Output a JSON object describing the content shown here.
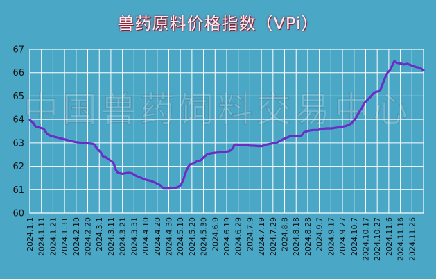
{
  "chart_data": {
    "type": "line",
    "title": "兽药原料价格指数（VPi）",
    "xlabel": "",
    "ylabel": "",
    "ylim": [
      60,
      67
    ],
    "y_ticks": [
      "60",
      "61",
      "62",
      "63",
      "64",
      "65",
      "66",
      "67"
    ],
    "x_ticks": [
      "2024.1.1",
      "2024.1.11",
      "2024.1.21",
      "2024.1.31",
      "2024.2.10",
      "2024.2.20",
      "2024.3.1",
      "2024.3.11",
      "2024.3.21",
      "2024.3.31",
      "2024.4.10",
      "2024.4.20",
      "2024.4.30",
      "2024.5.10",
      "2024.5.20",
      "2024.5.30",
      "2024.6.9",
      "2024.6.19",
      "2024.6.29",
      "2024.7.9",
      "2024.7.19",
      "2024.7.29",
      "2024.8.8",
      "2024.8.18",
      "2024.8.28",
      "2024.9.7",
      "2024.9.17",
      "2024.9.27",
      "2024.10.7",
      "2024.10.17",
      "2024.10.27",
      "2024.11.6",
      "2024.11.16",
      "2024.11.26"
    ],
    "x_range_days": [
      0,
      339
    ],
    "grid": true,
    "series": [
      {
        "name": "",
        "color": "#6a2ec4",
        "x_days": [
          0,
          3,
          5,
          8,
          12,
          15,
          18,
          22,
          26,
          30,
          34,
          38,
          42,
          46,
          50,
          55,
          58,
          61,
          63,
          65,
          68,
          72,
          74,
          76,
          78,
          80,
          82,
          85,
          88,
          92,
          96,
          100,
          104,
          108,
          112,
          115,
          118,
          120,
          122,
          124,
          126,
          128,
          130,
          132,
          134,
          136,
          138,
          140,
          142,
          144,
          147,
          150,
          153,
          156,
          160,
          164,
          168,
          172,
          175,
          176,
          178,
          180,
          183,
          186,
          190,
          194,
          197,
          200,
          204,
          208,
          212,
          216,
          220,
          224,
          228,
          232,
          234,
          236,
          240,
          244,
          248,
          252,
          256,
          260,
          264,
          268,
          272,
          276,
          280,
          284,
          286,
          288,
          290,
          292,
          294,
          296,
          298,
          300,
          302,
          304,
          306,
          308,
          310,
          312,
          314,
          316,
          318,
          320,
          322,
          325,
          328,
          332,
          336,
          339
        ],
        "values": [
          63.98,
          63.85,
          63.7,
          63.66,
          63.6,
          63.38,
          63.3,
          63.25,
          63.2,
          63.15,
          63.1,
          63.05,
          63.02,
          63.0,
          62.98,
          62.95,
          62.75,
          62.6,
          62.42,
          62.4,
          62.3,
          62.15,
          61.85,
          61.72,
          61.7,
          61.68,
          61.7,
          61.72,
          61.7,
          61.58,
          61.5,
          61.42,
          61.38,
          61.3,
          61.2,
          61.05,
          61.05,
          61.05,
          61.06,
          61.07,
          61.09,
          61.12,
          61.2,
          61.4,
          61.7,
          61.95,
          62.08,
          62.1,
          62.15,
          62.22,
          62.25,
          62.4,
          62.52,
          62.55,
          62.58,
          62.6,
          62.62,
          62.65,
          62.78,
          62.92,
          62.93,
          62.92,
          62.9,
          62.9,
          62.88,
          62.87,
          62.86,
          62.86,
          62.93,
          62.97,
          63.0,
          63.1,
          63.2,
          63.28,
          63.3,
          63.28,
          63.32,
          63.45,
          63.52,
          63.55,
          63.55,
          63.6,
          63.62,
          63.62,
          63.65,
          63.68,
          63.72,
          63.8,
          64.0,
          64.35,
          64.5,
          64.7,
          64.8,
          64.9,
          65.0,
          65.12,
          65.18,
          65.2,
          65.28,
          65.55,
          65.8,
          66.0,
          66.1,
          66.3,
          66.5,
          66.42,
          66.4,
          66.38,
          66.35,
          66.38,
          66.32,
          66.25,
          66.2,
          66.1
        ]
      }
    ]
  },
  "watermark": "中国兽药饲料交易中心"
}
